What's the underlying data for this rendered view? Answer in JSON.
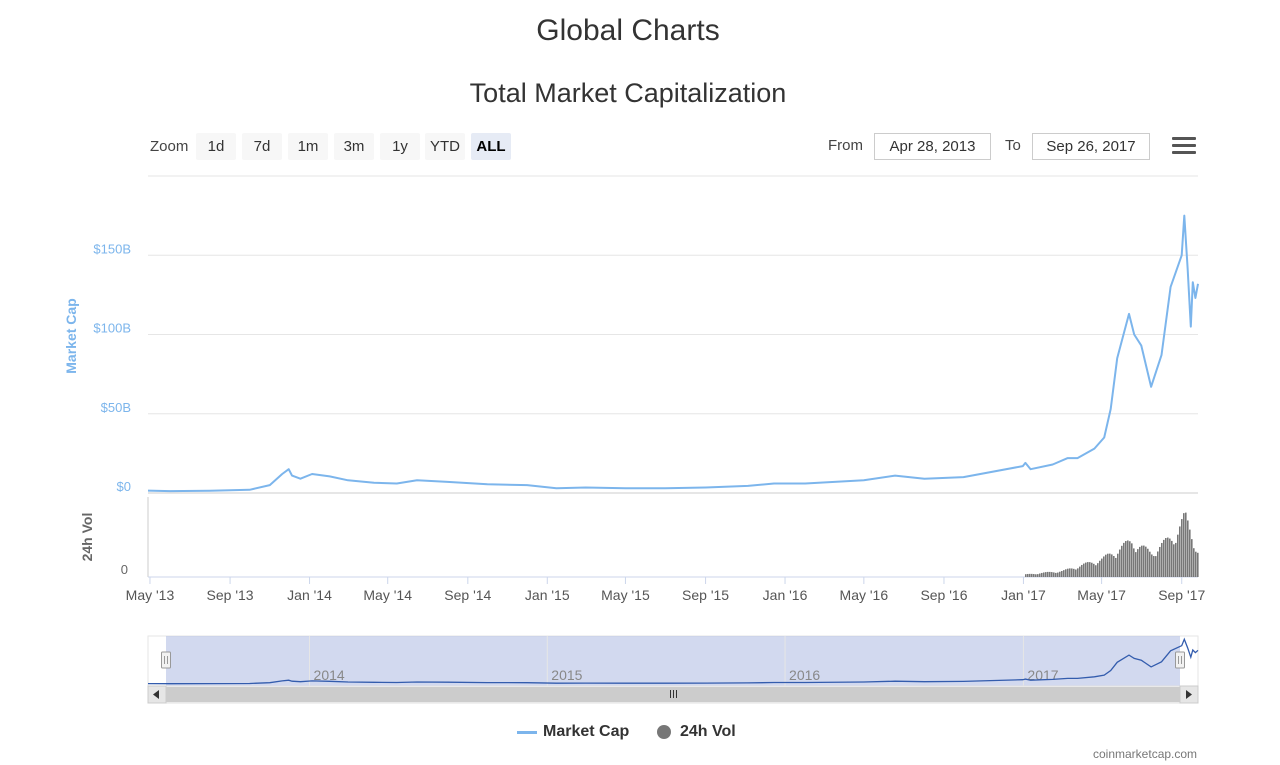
{
  "page_title": "Global Charts",
  "toolbar": {
    "zoom_label": "Zoom",
    "zoom_buttons": [
      "1d",
      "7d",
      "1m",
      "3m",
      "1y",
      "YTD",
      "ALL"
    ],
    "active_zoom": "ALL",
    "from_label": "From",
    "from_value": "Apr 28, 2013",
    "to_label": "To",
    "to_value": "Sep 26, 2017"
  },
  "legend": {
    "market_cap": "Market Cap",
    "volume": "24h Vol"
  },
  "credits": "coinmarketcap.com",
  "colors": {
    "market_cap": "#7cb5ec",
    "volume": "#777777",
    "navigator_fill": "#b4c0e4",
    "navigator_line": "#335cad"
  },
  "chart_data": {
    "type": "line",
    "title": "Total Market Capitalization",
    "ylabel": "Market Cap",
    "y2label": "24h Vol",
    "x_ticks": [
      "May '13",
      "Sep '13",
      "Jan '14",
      "May '14",
      "Sep '14",
      "Jan '15",
      "May '15",
      "Sep '15",
      "Jan '16",
      "May '16",
      "Sep '16",
      "Jan '17",
      "May '17",
      "Sep '17"
    ],
    "y_ticks": [
      "$0",
      "$50B",
      "$100B",
      "$150B"
    ],
    "y_tick_values": [
      0,
      50,
      100,
      150
    ],
    "y_unit": "$B",
    "ylim": [
      0,
      200
    ],
    "vol_tick": "0",
    "navigator_labels": [
      "2014",
      "2015",
      "2016",
      "2017"
    ],
    "series": [
      {
        "name": "Market Cap",
        "x": [
          "2013-04-28",
          "2013-06-01",
          "2013-08-01",
          "2013-10-01",
          "2013-11-01",
          "2013-11-20",
          "2013-11-30",
          "2013-12-05",
          "2013-12-18",
          "2014-01-05",
          "2014-02-01",
          "2014-03-01",
          "2014-04-10",
          "2014-05-15",
          "2014-06-15",
          "2014-08-01",
          "2014-10-01",
          "2014-12-01",
          "2015-01-15",
          "2015-03-01",
          "2015-05-01",
          "2015-07-01",
          "2015-09-01",
          "2015-11-05",
          "2015-12-15",
          "2016-02-01",
          "2016-05-01",
          "2016-06-18",
          "2016-08-02",
          "2016-10-01",
          "2016-12-31",
          "2017-01-04",
          "2017-01-12",
          "2017-02-15",
          "2017-03-10",
          "2017-03-25",
          "2017-04-20",
          "2017-05-05",
          "2017-05-15",
          "2017-05-25",
          "2017-06-12",
          "2017-06-20",
          "2017-07-01",
          "2017-07-16",
          "2017-08-01",
          "2017-08-15",
          "2017-09-01",
          "2017-09-05",
          "2017-09-10",
          "2017-09-15",
          "2017-09-18",
          "2017-09-22",
          "2017-09-26"
        ],
        "values": [
          1.5,
          1.2,
          1.4,
          2.0,
          5.0,
          12.0,
          15.0,
          11.0,
          9.0,
          12.0,
          10.5,
          8.0,
          6.5,
          6.0,
          8.0,
          7.0,
          5.5,
          5.0,
          3.0,
          3.5,
          3.0,
          3.0,
          3.5,
          4.5,
          6.0,
          6.0,
          8.0,
          11.0,
          9.0,
          10.0,
          17.0,
          19.0,
          15.0,
          18.0,
          22.0,
          22.0,
          28.0,
          35.0,
          53.0,
          85.0,
          113.0,
          100.0,
          93.0,
          67.0,
          87.0,
          130.0,
          150.0,
          175.0,
          142.0,
          105.0,
          133.0,
          123.0,
          132.0
        ]
      },
      {
        "name": "24h Vol",
        "x": [
          "2017-01-01",
          "2017-03-01",
          "2017-05-01",
          "2017-06-15",
          "2017-07-15",
          "2017-08-20",
          "2017-09-05",
          "2017-09-26"
        ],
        "values": [
          0.2,
          0.5,
          1.5,
          3.0,
          2.0,
          3.5,
          5.0,
          2.0
        ]
      }
    ]
  }
}
